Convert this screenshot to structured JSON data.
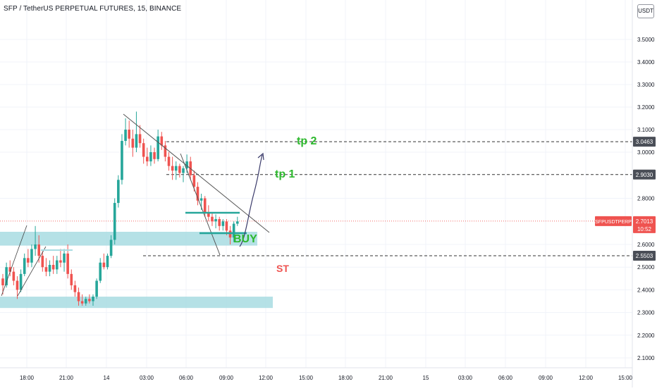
{
  "header": {
    "title": "SFP / TetherUS PERPETUAL FUTURES, 15, BINANCE",
    "currency": "USDT"
  },
  "colors": {
    "up": "#26a69a",
    "down": "#ef5350",
    "zone": "#a8dce2",
    "green_text": "#2db82d",
    "red_text": "#ef5350",
    "trendline": "#555555",
    "arrow": "#3a3a6a"
  },
  "chart_data": {
    "type": "candlestick",
    "symbol": "SFP / TetherUS PERPETUAL FUTURES",
    "interval": "15",
    "exchange": "BINANCE",
    "y_ticks": [
      "3.5000",
      "3.4000",
      "3.3000",
      "3.2000",
      "3.1000",
      "3.0000",
      "2.8000",
      "2.6000",
      "2.5000",
      "2.4000",
      "2.3000",
      "2.2000",
      "2.1000"
    ],
    "x_ticks": [
      "18:00",
      "21:00",
      "14",
      "03:00",
      "06:00",
      "09:00",
      "12:00",
      "15:00",
      "18:00",
      "21:00",
      "15",
      "03:00",
      "06:00",
      "09:00",
      "12:00",
      "15:00"
    ],
    "price_labels": [
      {
        "name": "tp2-level",
        "value": "3.0463",
        "num": 3.0463
      },
      {
        "name": "tp1-level",
        "value": "2.9030",
        "num": 2.903
      },
      {
        "name": "stop-level",
        "value": "2.5503",
        "num": 2.5503
      }
    ],
    "current": {
      "symbol": "SFPUSDTPERP",
      "price": "2.7013",
      "num": 2.7013,
      "countdown": "10:52"
    },
    "annotations": [
      {
        "name": "tp2-annotation",
        "text": "tp 2",
        "color": "green"
      },
      {
        "name": "tp1-annotation",
        "text": "tp 1",
        "color": "green"
      },
      {
        "name": "buy-annotation",
        "text": "BUY",
        "color": "green"
      },
      {
        "name": "stop-annotation",
        "text": "ST",
        "color": "red"
      }
    ],
    "zones": [
      {
        "name": "demand-zone-upper",
        "from": 2.595,
        "to": 2.655
      },
      {
        "name": "demand-zone-lower",
        "from": 2.32,
        "to": 2.37
      }
    ],
    "candles": [
      [
        2.45,
        2.47,
        2.38,
        2.42
      ],
      [
        2.42,
        2.52,
        2.41,
        2.5
      ],
      [
        2.5,
        2.53,
        2.46,
        2.48
      ],
      [
        2.48,
        2.5,
        2.42,
        2.44
      ],
      [
        2.44,
        2.46,
        2.36,
        2.4
      ],
      [
        2.4,
        2.49,
        2.39,
        2.47
      ],
      [
        2.47,
        2.56,
        2.46,
        2.54
      ],
      [
        2.54,
        2.58,
        2.5,
        2.52
      ],
      [
        2.52,
        2.6,
        2.5,
        2.58
      ],
      [
        2.58,
        2.68,
        2.55,
        2.6
      ],
      [
        2.6,
        2.64,
        2.52,
        2.55
      ],
      [
        2.55,
        2.57,
        2.48,
        2.5
      ],
      [
        2.5,
        2.54,
        2.46,
        2.48
      ],
      [
        2.48,
        2.53,
        2.46,
        2.51
      ],
      [
        2.51,
        2.55,
        2.47,
        2.49
      ],
      [
        2.49,
        2.55,
        2.47,
        2.53
      ],
      [
        2.53,
        2.58,
        2.5,
        2.52
      ],
      [
        2.52,
        2.58,
        2.48,
        2.56
      ],
      [
        2.56,
        2.6,
        2.45,
        2.47
      ],
      [
        2.47,
        2.49,
        2.4,
        2.42
      ],
      [
        2.42,
        2.44,
        2.37,
        2.39
      ],
      [
        2.39,
        2.41,
        2.33,
        2.35
      ],
      [
        2.35,
        2.38,
        2.33,
        2.34
      ],
      [
        2.34,
        2.37,
        2.33,
        2.36
      ],
      [
        2.36,
        2.38,
        2.34,
        2.35
      ],
      [
        2.35,
        2.38,
        2.33,
        2.37
      ],
      [
        2.37,
        2.45,
        2.36,
        2.44
      ],
      [
        2.44,
        2.54,
        2.43,
        2.52
      ],
      [
        2.52,
        2.56,
        2.49,
        2.5
      ],
      [
        2.5,
        2.56,
        2.49,
        2.55
      ],
      [
        2.55,
        2.64,
        2.54,
        2.62
      ],
      [
        2.62,
        2.8,
        2.6,
        2.78
      ],
      [
        2.78,
        2.9,
        2.76,
        2.88
      ],
      [
        2.88,
        3.08,
        2.86,
        3.05
      ],
      [
        3.05,
        3.15,
        3.03,
        3.1
      ],
      [
        3.1,
        3.14,
        3.02,
        3.06
      ],
      [
        3.06,
        3.1,
        2.98,
        3.02
      ],
      [
        3.02,
        3.18,
        3.0,
        3.08
      ],
      [
        3.08,
        3.12,
        3.02,
        3.04
      ],
      [
        3.04,
        3.06,
        2.95,
        2.98
      ],
      [
        2.98,
        3.02,
        2.94,
        2.96
      ],
      [
        2.96,
        3.03,
        2.94,
        3.0
      ],
      [
        3.0,
        3.02,
        2.95,
        2.97
      ],
      [
        2.97,
        3.1,
        2.96,
        3.07
      ],
      [
        3.07,
        3.09,
        3.01,
        3.03
      ],
      [
        3.03,
        3.05,
        2.96,
        2.98
      ],
      [
        2.98,
        3.0,
        2.92,
        2.94
      ],
      [
        2.94,
        2.98,
        2.88,
        2.92
      ],
      [
        2.92,
        2.96,
        2.88,
        2.94
      ],
      [
        2.94,
        2.95,
        2.89,
        2.91
      ],
      [
        2.91,
        2.94,
        2.87,
        2.93
      ],
      [
        2.93,
        2.99,
        2.91,
        2.96
      ],
      [
        2.96,
        2.98,
        2.88,
        2.9
      ],
      [
        2.9,
        2.92,
        2.83,
        2.85
      ],
      [
        2.85,
        2.87,
        2.77,
        2.79
      ],
      [
        2.79,
        2.82,
        2.75,
        2.8
      ],
      [
        2.8,
        2.81,
        2.72,
        2.74
      ],
      [
        2.74,
        2.77,
        2.7,
        2.72
      ],
      [
        2.72,
        2.74,
        2.68,
        2.7
      ],
      [
        2.7,
        2.73,
        2.67,
        2.71
      ],
      [
        2.71,
        2.72,
        2.66,
        2.68
      ],
      [
        2.68,
        2.71,
        2.66,
        2.7
      ],
      [
        2.7,
        2.71,
        2.64,
        2.66
      ],
      [
        2.66,
        2.68,
        2.6,
        2.63
      ],
      [
        2.63,
        2.7,
        2.61,
        2.69
      ],
      [
        2.69,
        2.72,
        2.68,
        2.7
      ]
    ]
  }
}
